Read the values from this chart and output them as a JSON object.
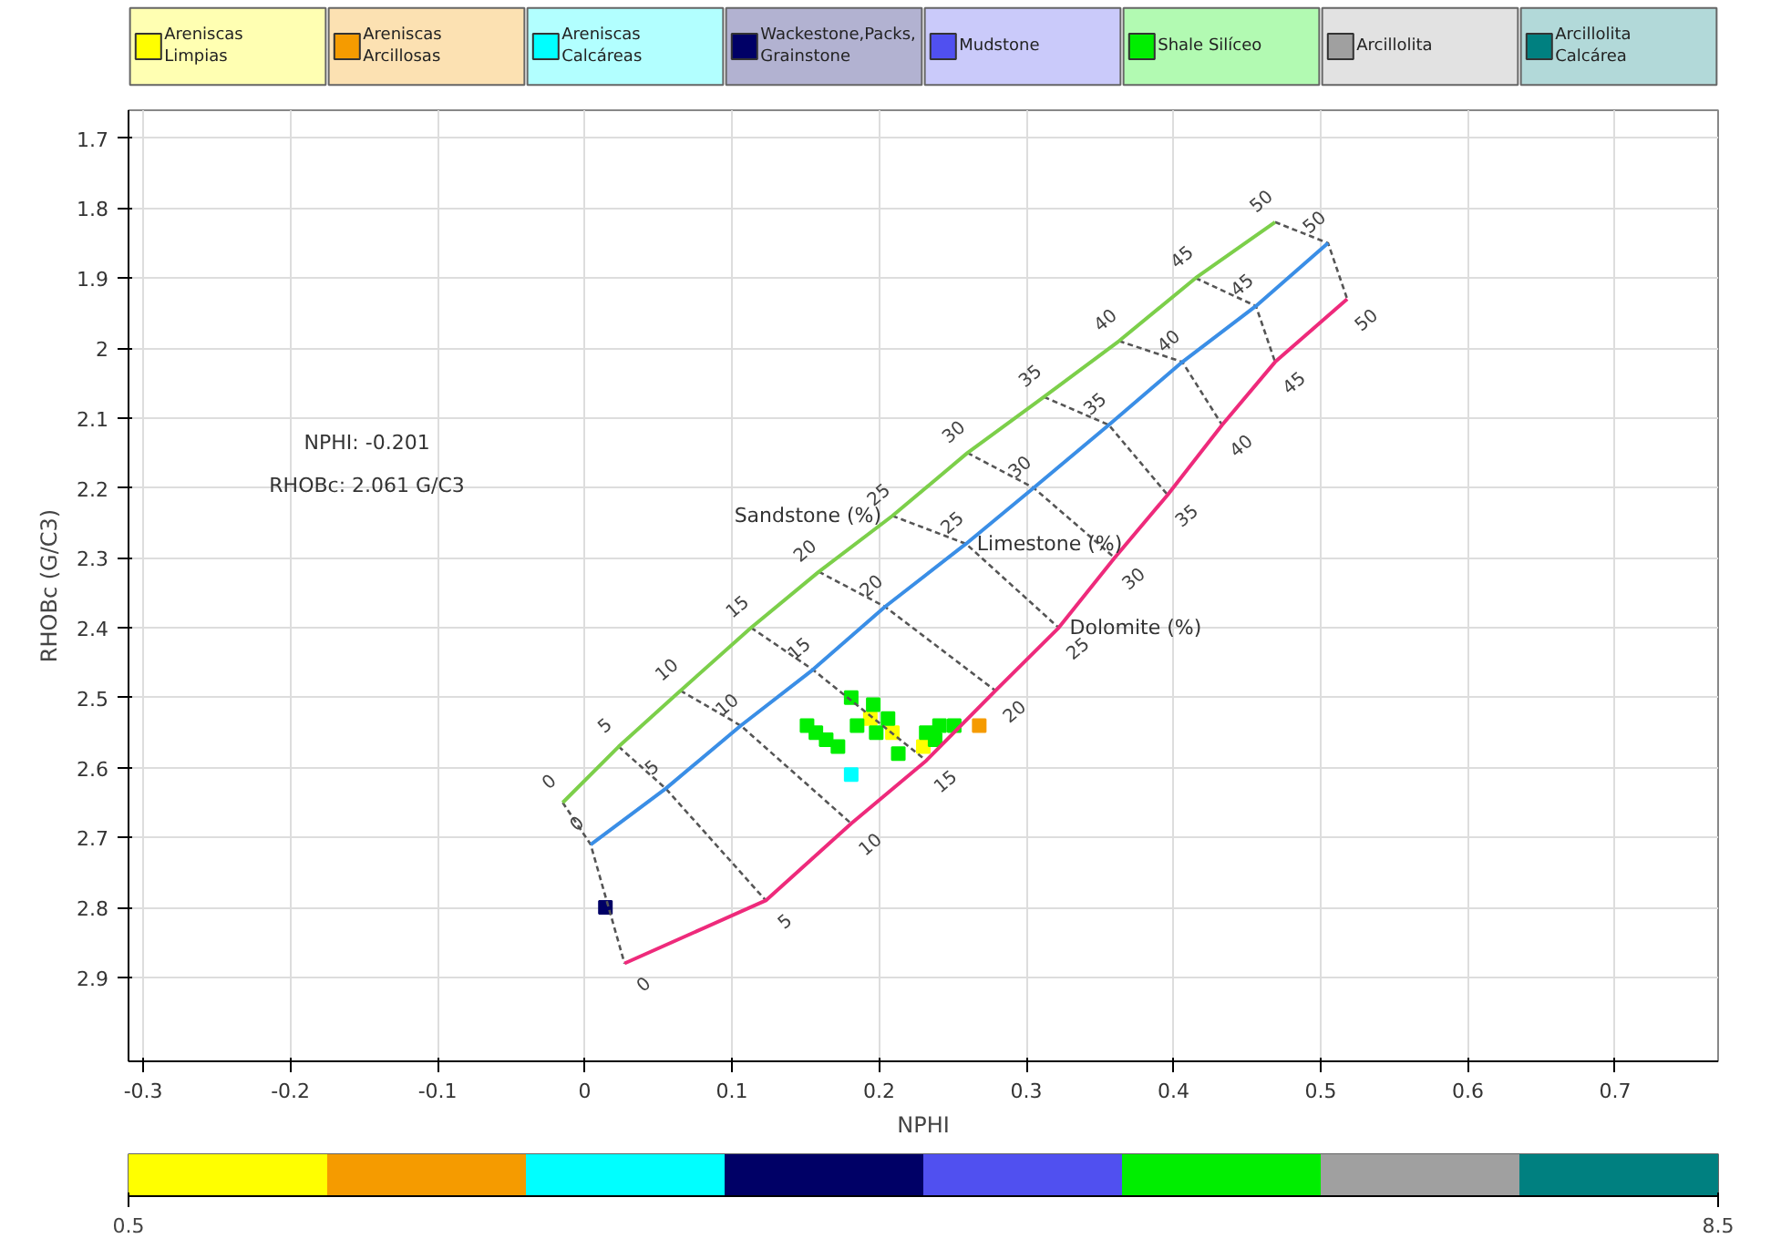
{
  "chart_data": {
    "type": "scatter",
    "xlabel": "NPHI",
    "ylabel": "RHOBc (G/C3)",
    "xlim": [
      -0.31,
      0.77
    ],
    "ylim": [
      3.02,
      1.66
    ],
    "xticks": [
      -0.3,
      -0.2,
      -0.1,
      0,
      0.1,
      0.2,
      0.3,
      0.4,
      0.5,
      0.6,
      0.7
    ],
    "yticks": [
      1.7,
      1.8,
      1.9,
      2,
      2.1,
      2.2,
      2.3,
      2.4,
      2.5,
      2.6,
      2.7,
      2.8,
      2.9
    ],
    "grid": true,
    "legend": "top",
    "clim": [
      0.5,
      8.5
    ],
    "cticks": [
      0.5,
      8.5
    ],
    "annotations": [
      "NPHI: -0.201",
      "RHOBc: 2.061 G/C3",
      {
        "text": "0",
        "x": -0.015,
        "y": 2.65
      },
      {
        "text": "5",
        "x": 0.023,
        "y": 2.57
      },
      {
        "text": "10",
        "x": 0.065,
        "y": 2.49
      },
      {
        "text": "15",
        "x": 0.113,
        "y": 2.4
      },
      {
        "text": "20",
        "x": 0.159,
        "y": 2.32
      },
      {
        "text": "25",
        "x": 0.209,
        "y": 2.24
      },
      {
        "text": "30",
        "x": 0.26,
        "y": 2.15
      },
      {
        "text": "35",
        "x": 0.312,
        "y": 2.07
      },
      {
        "text": "40",
        "x": 0.363,
        "y": 1.99
      },
      {
        "text": "45",
        "x": 0.415,
        "y": 1.9
      },
      {
        "text": "50",
        "x": 0.469,
        "y": 1.82
      },
      {
        "text": "0",
        "x": 0.004,
        "y": 2.71
      },
      {
        "text": "5",
        "x": 0.055,
        "y": 2.63
      },
      {
        "text": "10",
        "x": 0.106,
        "y": 2.54
      },
      {
        "text": "15",
        "x": 0.155,
        "y": 2.46
      },
      {
        "text": "20",
        "x": 0.204,
        "y": 2.37
      },
      {
        "text": "25",
        "x": 0.259,
        "y": 2.28
      },
      {
        "text": "30",
        "x": 0.305,
        "y": 2.2
      },
      {
        "text": "35",
        "x": 0.356,
        "y": 2.11
      },
      {
        "text": "40",
        "x": 0.406,
        "y": 2.02
      },
      {
        "text": "45",
        "x": 0.456,
        "y": 1.94
      },
      {
        "text": "50",
        "x": 0.505,
        "y": 1.85
      },
      {
        "text": "0",
        "x": 0.027,
        "y": 2.88
      },
      {
        "text": "5",
        "x": 0.123,
        "y": 2.79
      },
      {
        "text": "10",
        "x": 0.181,
        "y": 2.68
      },
      {
        "text": "15",
        "x": 0.232,
        "y": 2.59
      },
      {
        "text": "20",
        "x": 0.279,
        "y": 2.49
      },
      {
        "text": "25",
        "x": 0.322,
        "y": 2.4
      },
      {
        "text": "30",
        "x": 0.36,
        "y": 2.3
      },
      {
        "text": "35",
        "x": 0.396,
        "y": 2.21
      },
      {
        "text": "40",
        "x": 0.433,
        "y": 2.11
      },
      {
        "text": "45",
        "x": 0.469,
        "y": 2.02
      },
      {
        "text": "50",
        "x": 0.518,
        "y": 1.93
      }
    ],
    "series": [
      {
        "name": "Areniscas Limpias",
        "color": "#ffff00",
        "marker": "square",
        "x": [
          0.194,
          0.23,
          0.209
        ],
        "values": [
          2.53,
          2.57,
          2.55
        ]
      },
      {
        "name": "Areniscas Arcillosas",
        "color": "#f59b00",
        "marker": "square",
        "x": [
          0.268
        ],
        "values": [
          2.54
        ]
      },
      {
        "name": "Areniscas Calcáreas",
        "color": "#00ffff",
        "marker": "square",
        "x": [
          0.181
        ],
        "values": [
          2.61
        ]
      },
      {
        "name": "Wackestone,Packs, Grainstone",
        "color": "#000066",
        "marker": "square",
        "x": [
          0.014
        ],
        "values": [
          2.8
        ]
      },
      {
        "name": "Mudstone",
        "color": "#5050f0"
      },
      {
        "name": "Shale Silíceo",
        "color": "#00ee00",
        "marker": "square",
        "x": [
          0.151,
          0.157,
          0.164,
          0.172,
          0.181,
          0.185,
          0.196,
          0.198,
          0.206,
          0.213,
          0.232,
          0.241,
          0.251,
          0.238
        ],
        "values": [
          2.54,
          2.55,
          2.56,
          2.57,
          2.5,
          2.54,
          2.51,
          2.55,
          2.53,
          2.58,
          2.55,
          2.54,
          2.54,
          2.56
        ]
      },
      {
        "name": "Arcillolita",
        "color": "#a0a0a0"
      },
      {
        "name": "Arcillolita Calcárea",
        "color": "#008080"
      },
      {
        "type": "line",
        "line_style": "dashed",
        "color": "#555555",
        "x": [
          -0.015,
          0.004,
          0.027
        ],
        "values": [
          2.65,
          2.71,
          2.88
        ]
      },
      {
        "type": "line",
        "line_style": "dashed",
        "color": "#555555",
        "x": [
          0.023,
          0.055,
          0.123
        ],
        "values": [
          2.57,
          2.63,
          2.79
        ]
      },
      {
        "type": "line",
        "line_style": "dashed",
        "color": "#555555",
        "x": [
          0.065,
          0.106,
          0.181
        ],
        "values": [
          2.49,
          2.54,
          2.68
        ]
      },
      {
        "type": "line",
        "line_style": "dashed",
        "color": "#555555",
        "x": [
          0.113,
          0.155,
          0.232
        ],
        "values": [
          2.4,
          2.46,
          2.59
        ]
      },
      {
        "type": "line",
        "line_style": "dashed",
        "color": "#555555",
        "x": [
          0.159,
          0.204,
          0.279
        ],
        "values": [
          2.32,
          2.37,
          2.49
        ]
      },
      {
        "type": "line",
        "line_style": "dashed",
        "color": "#555555",
        "x": [
          0.209,
          0.259,
          0.322
        ],
        "values": [
          2.24,
          2.28,
          2.4
        ]
      },
      {
        "type": "line",
        "line_style": "dashed",
        "color": "#555555",
        "x": [
          0.26,
          0.305,
          0.36
        ],
        "values": [
          2.15,
          2.2,
          2.3
        ]
      },
      {
        "type": "line",
        "line_style": "dashed",
        "color": "#555555",
        "x": [
          0.312,
          0.356,
          0.396
        ],
        "values": [
          2.07,
          2.11,
          2.21
        ]
      },
      {
        "type": "line",
        "line_style": "dashed",
        "color": "#555555",
        "x": [
          0.363,
          0.406,
          0.433
        ],
        "values": [
          1.99,
          2.02,
          2.11
        ]
      },
      {
        "type": "line",
        "line_style": "dashed",
        "color": "#555555",
        "x": [
          0.415,
          0.456,
          0.469
        ],
        "values": [
          1.9,
          1.94,
          2.02
        ]
      },
      {
        "type": "line",
        "line_style": "dashed",
        "color": "#555555",
        "x": [
          0.469,
          0.505,
          0.518
        ],
        "values": [
          1.82,
          1.85,
          1.93
        ]
      },
      {
        "type": "line",
        "line_style": "solid",
        "name": "Sandstone (%)",
        "color": "#7ccf4a",
        "x": [
          -0.015,
          0.023,
          0.065,
          0.113,
          0.159,
          0.209,
          0.26,
          0.312,
          0.363,
          0.415,
          0.469
        ],
        "values": [
          2.65,
          2.57,
          2.49,
          2.4,
          2.32,
          2.24,
          2.15,
          2.07,
          1.99,
          1.9,
          1.82
        ]
      },
      {
        "type": "line",
        "line_style": "solid",
        "name": "Limestone (%)",
        "color": "#3a8ee6",
        "x": [
          0.004,
          0.055,
          0.106,
          0.155,
          0.204,
          0.259,
          0.305,
          0.356,
          0.406,
          0.456,
          0.505
        ],
        "values": [
          2.71,
          2.63,
          2.54,
          2.46,
          2.37,
          2.28,
          2.2,
          2.11,
          2.02,
          1.94,
          1.85
        ]
      },
      {
        "type": "line",
        "line_style": "solid",
        "name": "Dolomite (%)",
        "color": "#ee2a7b",
        "x": [
          0.027,
          0.123,
          0.181,
          0.232,
          0.279,
          0.322,
          0.36,
          0.396,
          0.433,
          0.469,
          0.518
        ],
        "values": [
          2.88,
          2.79,
          2.68,
          2.59,
          2.49,
          2.4,
          2.3,
          2.21,
          2.11,
          2.02,
          1.93
        ]
      }
    ]
  }
}
